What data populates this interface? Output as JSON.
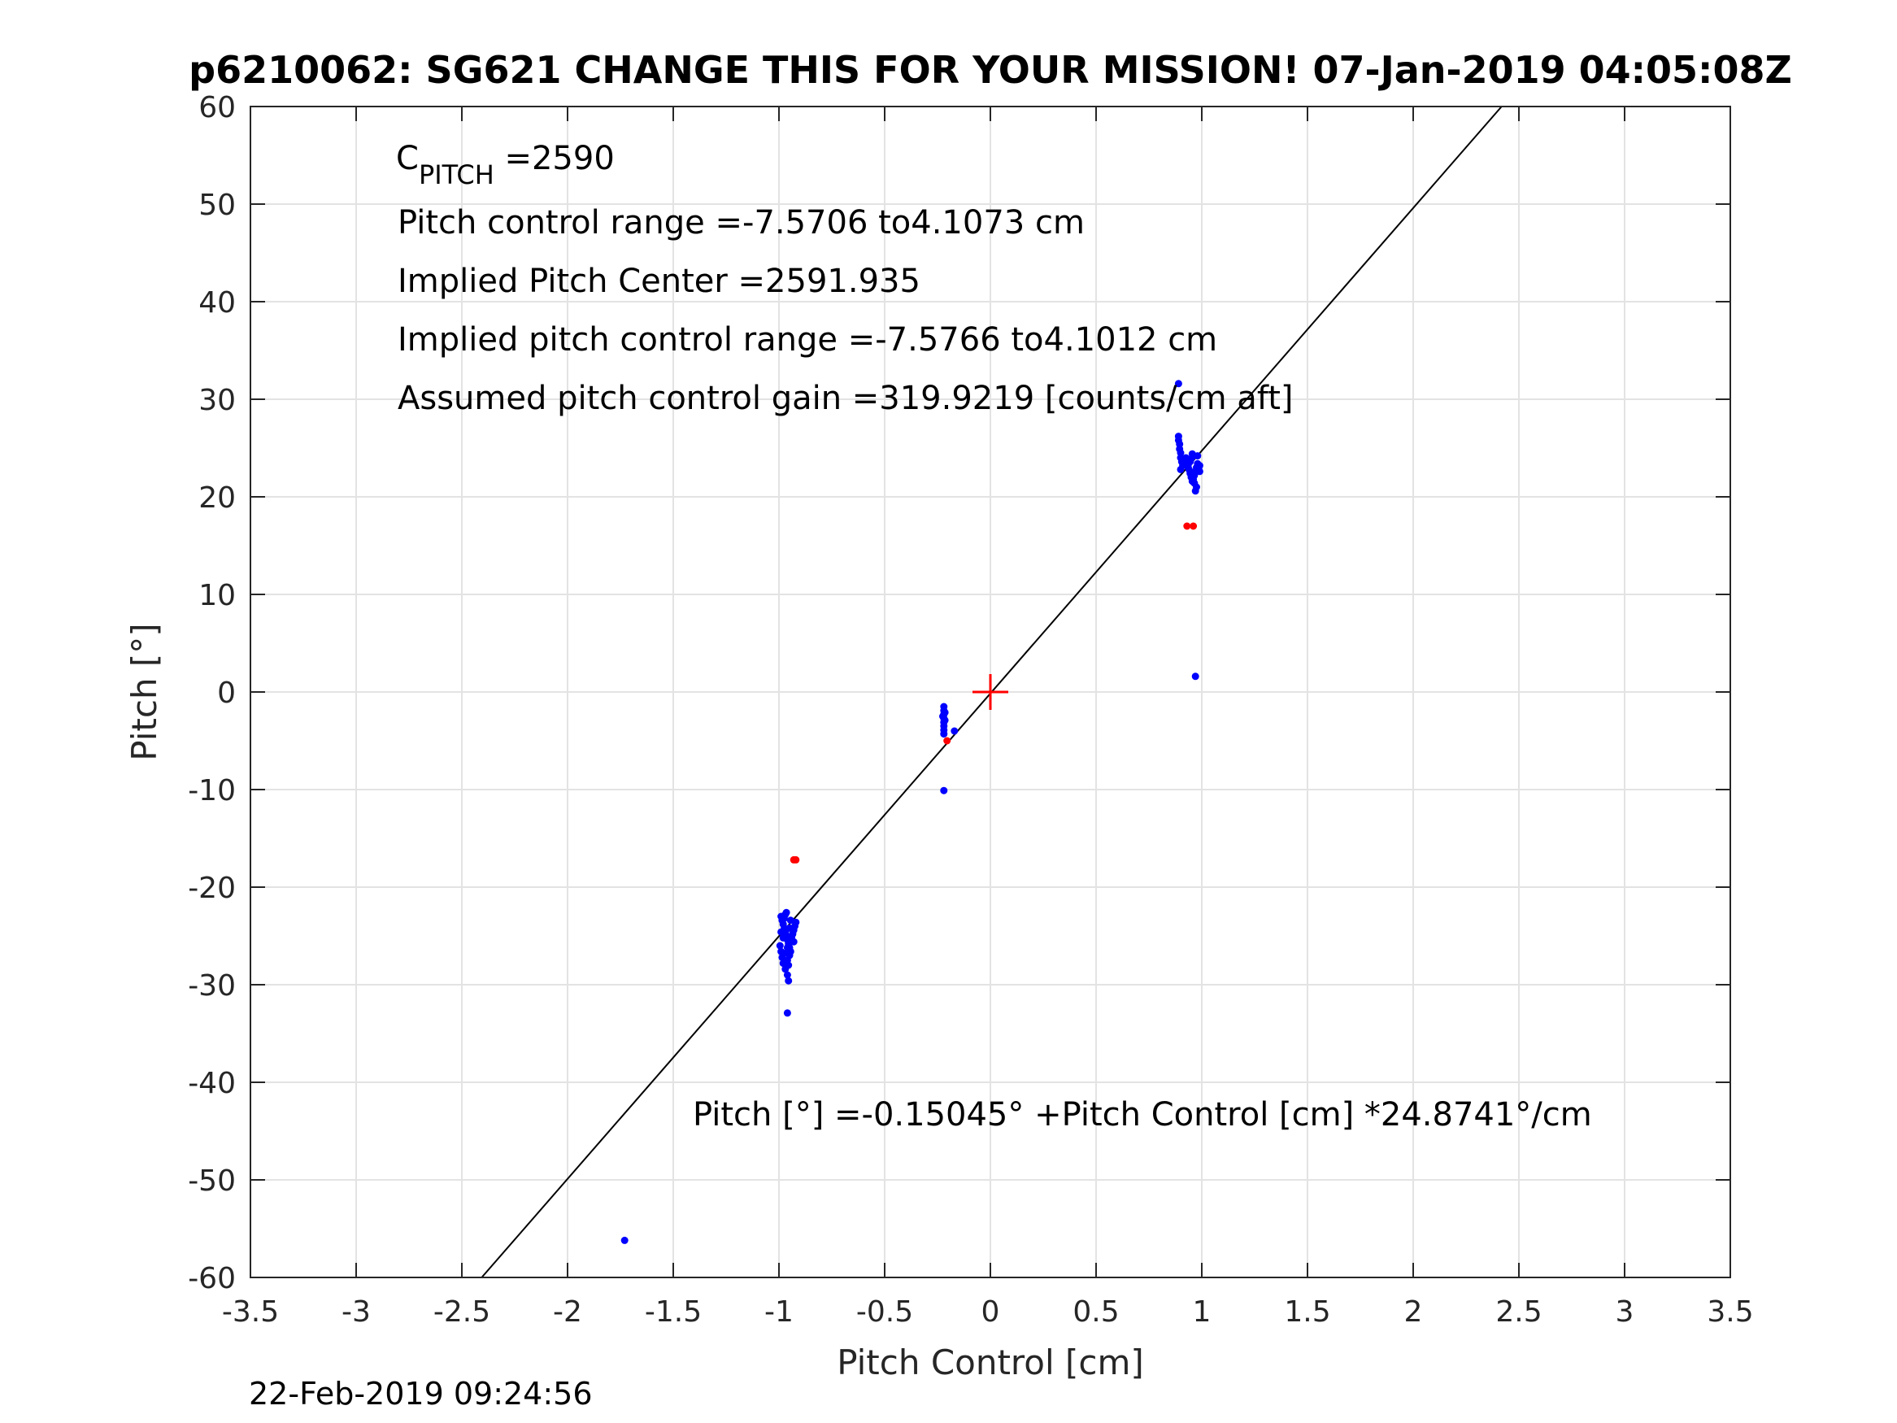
{
  "chart_data": {
    "type": "scatter",
    "title": "p6210062: SG621 CHANGE THIS FOR YOUR MISSION! 07-Jan-2019 04:05:08Z",
    "xlabel": "Pitch Control [cm]",
    "ylabel": "Pitch [°]",
    "xlim": [
      -3.5,
      3.5
    ],
    "ylim": [
      -60,
      60
    ],
    "xticks": [
      -3.5,
      -3,
      -2.5,
      -2,
      -1.5,
      -1,
      -0.5,
      0,
      0.5,
      1,
      1.5,
      2,
      2.5,
      3,
      3.5
    ],
    "xtick_labels": [
      "-3.5",
      "-3",
      "-2.5",
      "-2",
      "-1.5",
      "-1",
      "-0.5",
      "0",
      "0.5",
      "1",
      "1.5",
      "2",
      "2.5",
      "3",
      "3.5"
    ],
    "yticks": [
      -60,
      -50,
      -40,
      -30,
      -20,
      -10,
      0,
      10,
      20,
      30,
      40,
      50,
      60
    ],
    "ytick_labels": [
      "-60",
      "-50",
      "-40",
      "-30",
      "-20",
      "-10",
      "0",
      "10",
      "20",
      "30",
      "40",
      "50",
      "60"
    ],
    "grid": true,
    "colors": {
      "good": "#0000ff",
      "bad": "#ff0000",
      "fit": "#000000",
      "center": "#ff0000",
      "grid": "#e3e3e3",
      "axis": "#262626"
    },
    "fit_line": {
      "intercept": -0.15045,
      "slope": 24.8741
    },
    "center_marker": {
      "x": 0,
      "y": 0
    },
    "series": [
      {
        "color": "#0000ff",
        "points": [
          [
            -0.99,
            -23.0
          ],
          [
            -0.985,
            -23.4
          ],
          [
            -0.98,
            -23.8
          ],
          [
            -0.975,
            -24.2
          ],
          [
            -0.97,
            -24.6
          ],
          [
            -0.965,
            -25.0
          ],
          [
            -0.96,
            -25.4
          ],
          [
            -0.955,
            -25.8
          ],
          [
            -0.95,
            -26.2
          ],
          [
            -0.945,
            -26.6
          ],
          [
            -0.94,
            -25.1
          ],
          [
            -0.935,
            -24.8
          ],
          [
            -0.93,
            -24.4
          ],
          [
            -0.925,
            -24.0
          ],
          [
            -0.92,
            -23.6
          ],
          [
            -0.995,
            -26.0
          ],
          [
            -0.99,
            -26.6
          ],
          [
            -0.985,
            -27.2
          ],
          [
            -0.98,
            -27.8
          ],
          [
            -0.97,
            -28.4
          ],
          [
            -0.96,
            -29.0
          ],
          [
            -0.955,
            -29.6
          ],
          [
            -0.96,
            -27.5
          ],
          [
            -0.955,
            -28.0
          ],
          [
            -0.97,
            -22.8
          ],
          [
            -0.965,
            -22.6
          ],
          [
            -0.975,
            -23.2
          ],
          [
            -0.95,
            -24.2
          ],
          [
            -0.94,
            -25.4
          ],
          [
            -0.93,
            -25.6
          ],
          [
            -0.945,
            -23.4
          ],
          [
            -0.98,
            -25.2
          ],
          [
            -0.99,
            -24.6
          ],
          [
            -0.975,
            -26.8
          ],
          [
            -0.96,
            -26.2
          ],
          [
            -0.95,
            -27.0
          ],
          [
            -0.96,
            -32.9
          ],
          [
            -0.22,
            -1.5
          ],
          [
            -0.22,
            -1.9
          ],
          [
            -0.22,
            -2.3
          ],
          [
            -0.22,
            -2.7
          ],
          [
            -0.22,
            -3.1
          ],
          [
            -0.22,
            -3.5
          ],
          [
            -0.22,
            -3.9
          ],
          [
            -0.215,
            -2.1
          ],
          [
            -0.215,
            -2.9
          ],
          [
            -0.225,
            -2.5
          ],
          [
            -0.22,
            -4.3
          ],
          [
            -0.17,
            -4.0
          ],
          [
            -0.22,
            -10.1
          ],
          [
            0.89,
            26.2
          ],
          [
            0.89,
            25.8
          ],
          [
            0.895,
            25.4
          ],
          [
            0.895,
            24.9
          ],
          [
            0.9,
            24.5
          ],
          [
            0.9,
            24.0
          ],
          [
            0.905,
            23.6
          ],
          [
            0.91,
            23.2
          ],
          [
            0.915,
            23.4
          ],
          [
            0.92,
            23.8
          ],
          [
            0.925,
            24.0
          ],
          [
            0.93,
            23.6
          ],
          [
            0.935,
            23.2
          ],
          [
            0.94,
            22.8
          ],
          [
            0.945,
            22.4
          ],
          [
            0.95,
            22.0
          ],
          [
            0.955,
            21.6
          ],
          [
            0.96,
            21.8
          ],
          [
            0.965,
            22.2
          ],
          [
            0.97,
            22.6
          ],
          [
            0.975,
            23.0
          ],
          [
            0.98,
            23.4
          ],
          [
            0.985,
            23.0
          ],
          [
            0.99,
            22.6
          ],
          [
            0.975,
            21.0
          ],
          [
            0.97,
            20.6
          ],
          [
            0.965,
            21.4
          ],
          [
            0.96,
            24.2
          ],
          [
            0.955,
            24.4
          ],
          [
            0.95,
            23.9
          ],
          [
            0.98,
            24.2
          ],
          [
            0.985,
            22.8
          ],
          [
            0.99,
            23.2
          ],
          [
            0.945,
            23.6
          ],
          [
            0.935,
            23.0
          ],
          [
            0.9,
            22.8
          ],
          [
            0.89,
            31.6
          ],
          [
            0.97,
            1.6
          ],
          [
            -1.73,
            -56.2
          ]
        ]
      },
      {
        "color": "#ff0000",
        "points": [
          [
            -0.93,
            -17.2
          ],
          [
            -0.92,
            -17.2
          ],
          [
            0.93,
            17.0
          ],
          [
            0.96,
            17.0
          ],
          [
            -0.205,
            -5.0
          ]
        ]
      }
    ],
    "annotations": [
      {
        "main": "C",
        "sub": "PITCH",
        "rest": " =2590"
      },
      {
        "text": "Pitch control range =-7.5706 to4.1073 cm"
      },
      {
        "text": "Implied Pitch Center =2591.935"
      },
      {
        "text": "Implied pitch control range =-7.5766 to4.1012 cm"
      },
      {
        "text": "Assumed pitch control gain =319.9219 [counts/cm aft]"
      }
    ],
    "fit_equation": "Pitch [°] =-0.15045° +Pitch Control [cm] *24.8741°/cm",
    "footer_timestamp": "22-Feb-2019 09:24:56"
  }
}
